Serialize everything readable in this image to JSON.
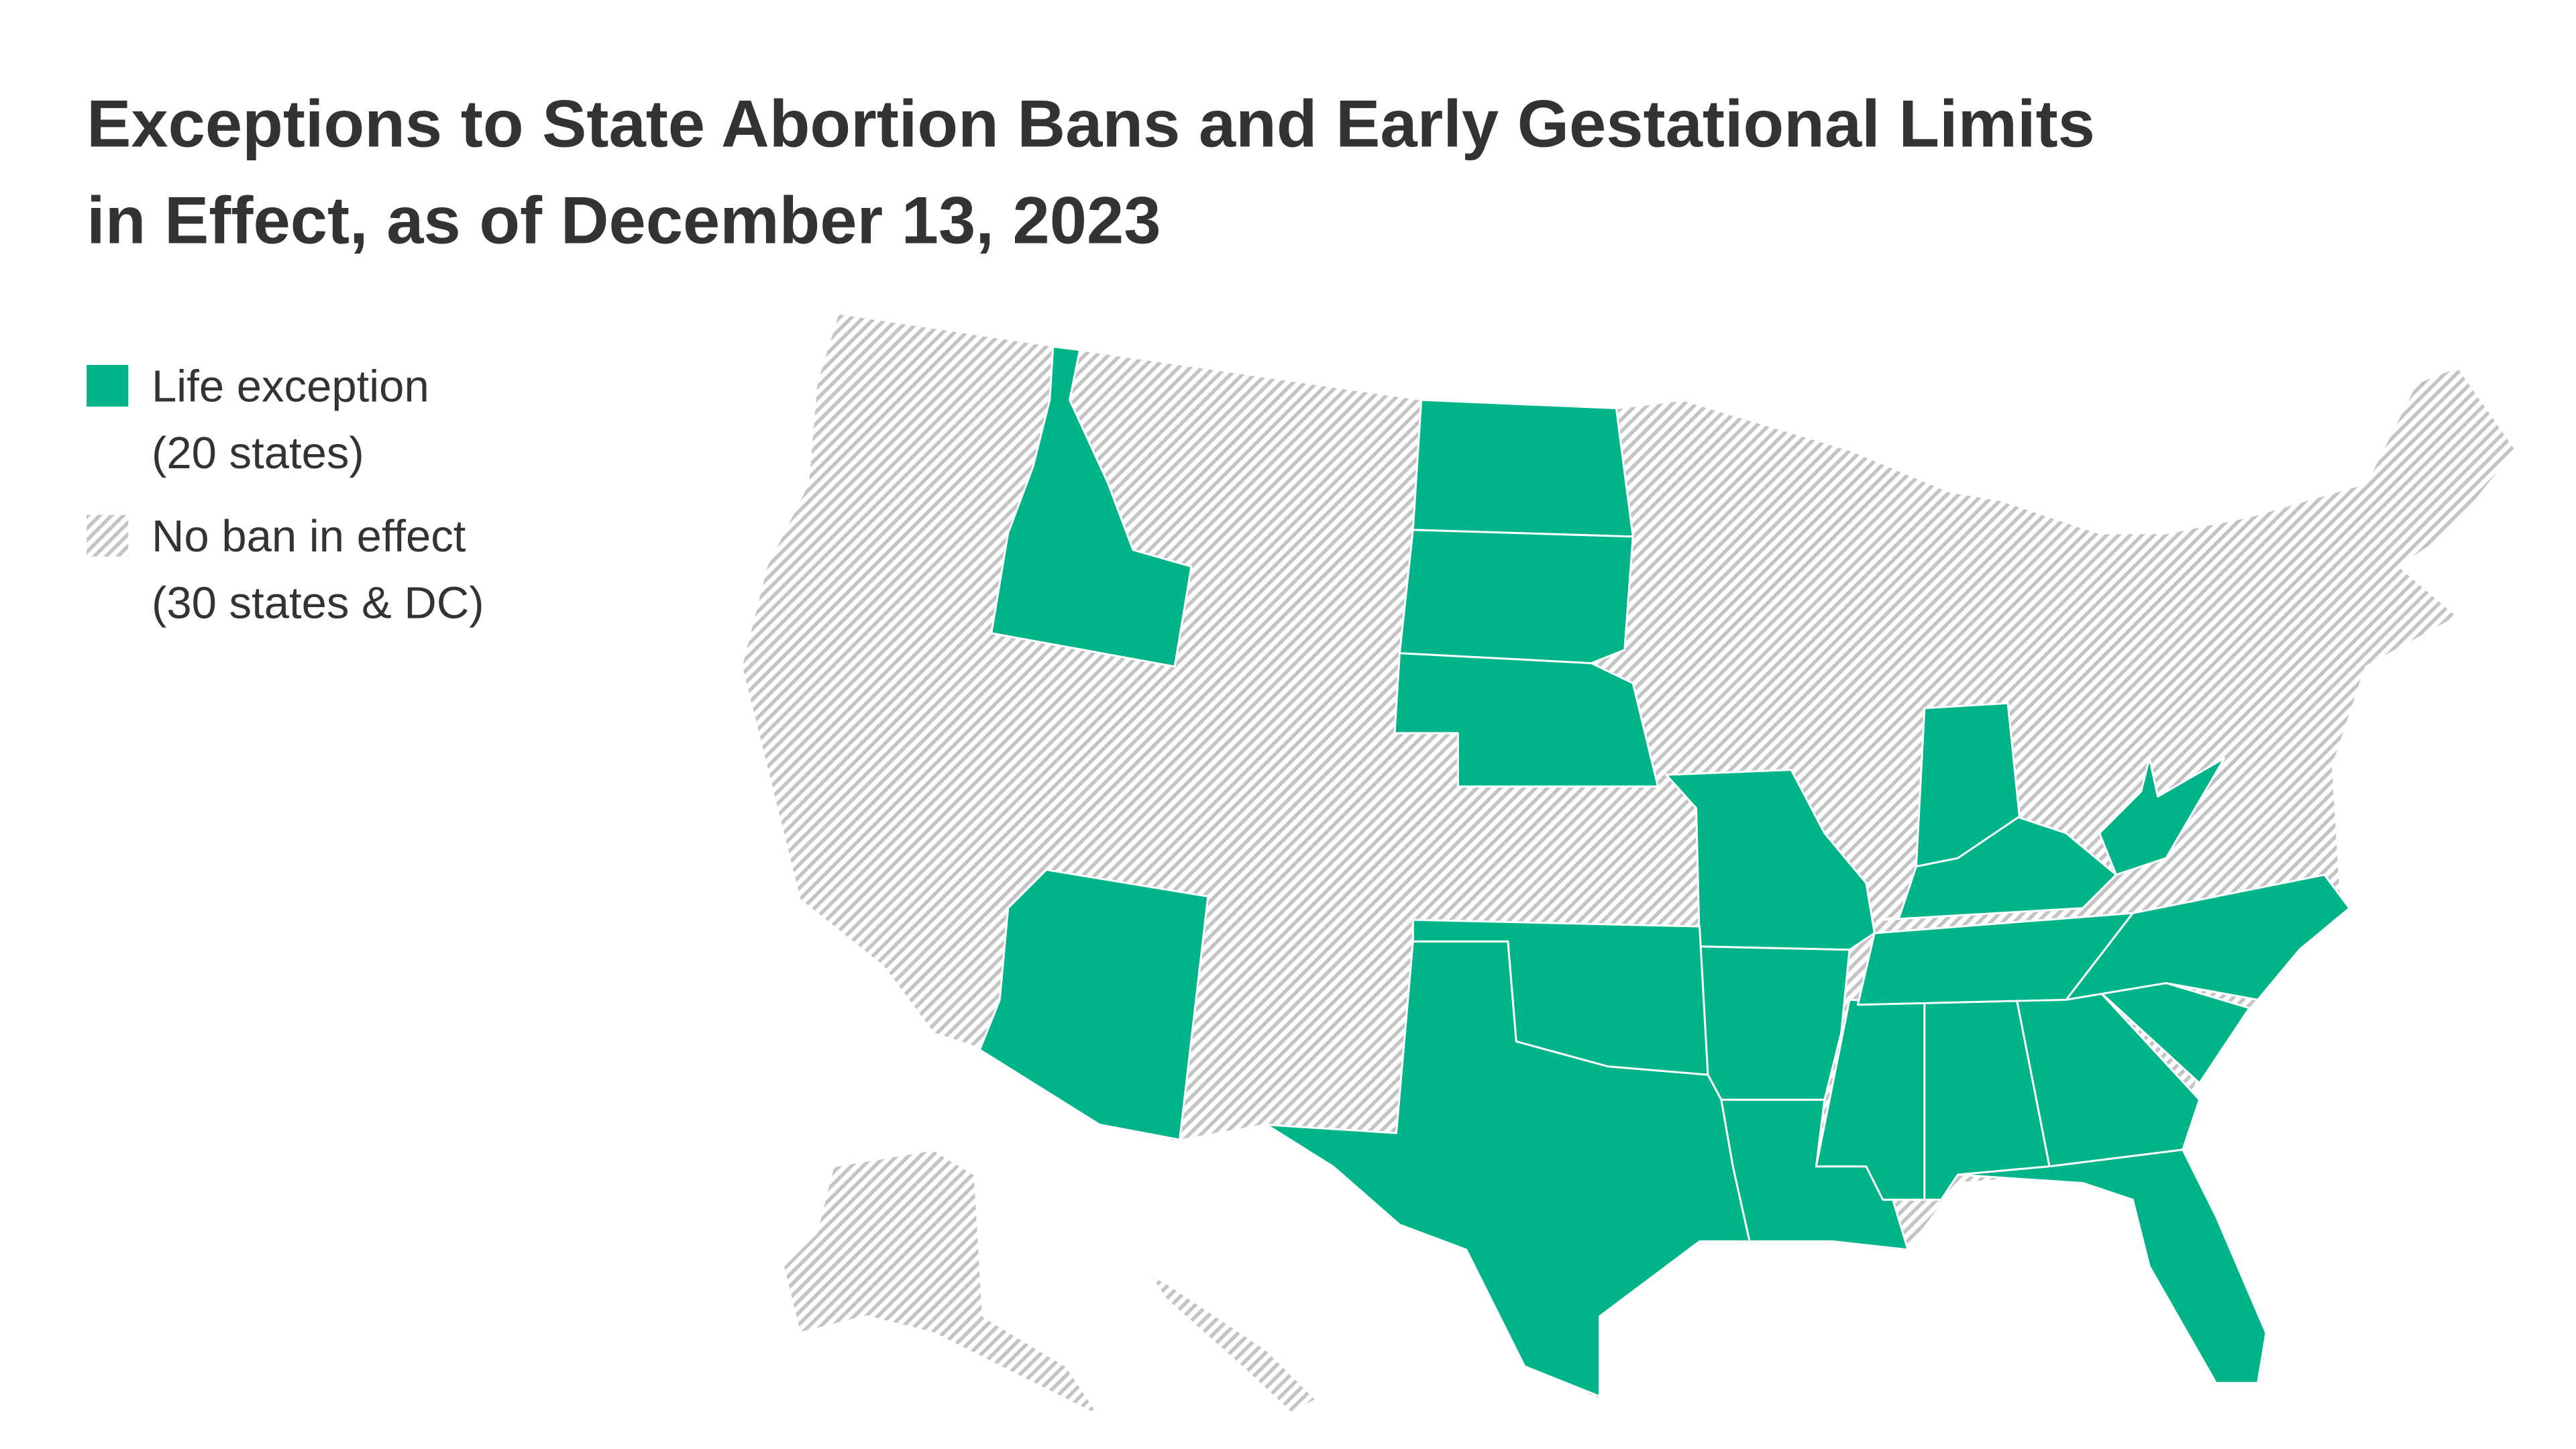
{
  "header": {
    "title": [
      "Exceptions to State Abortion Bans and Early Gestational Limits",
      "in Effect, as of December 13, 2023"
    ]
  },
  "legend": {
    "items": [
      {
        "label": [
          "Life exception",
          "(20 states)"
        ],
        "color": "#00b48a",
        "fill": "solid"
      },
      {
        "label": [
          "No ban in effect",
          "(30 states & DC)"
        ],
        "color": "#c4c4c4",
        "fill": "hatch"
      }
    ]
  }
}
